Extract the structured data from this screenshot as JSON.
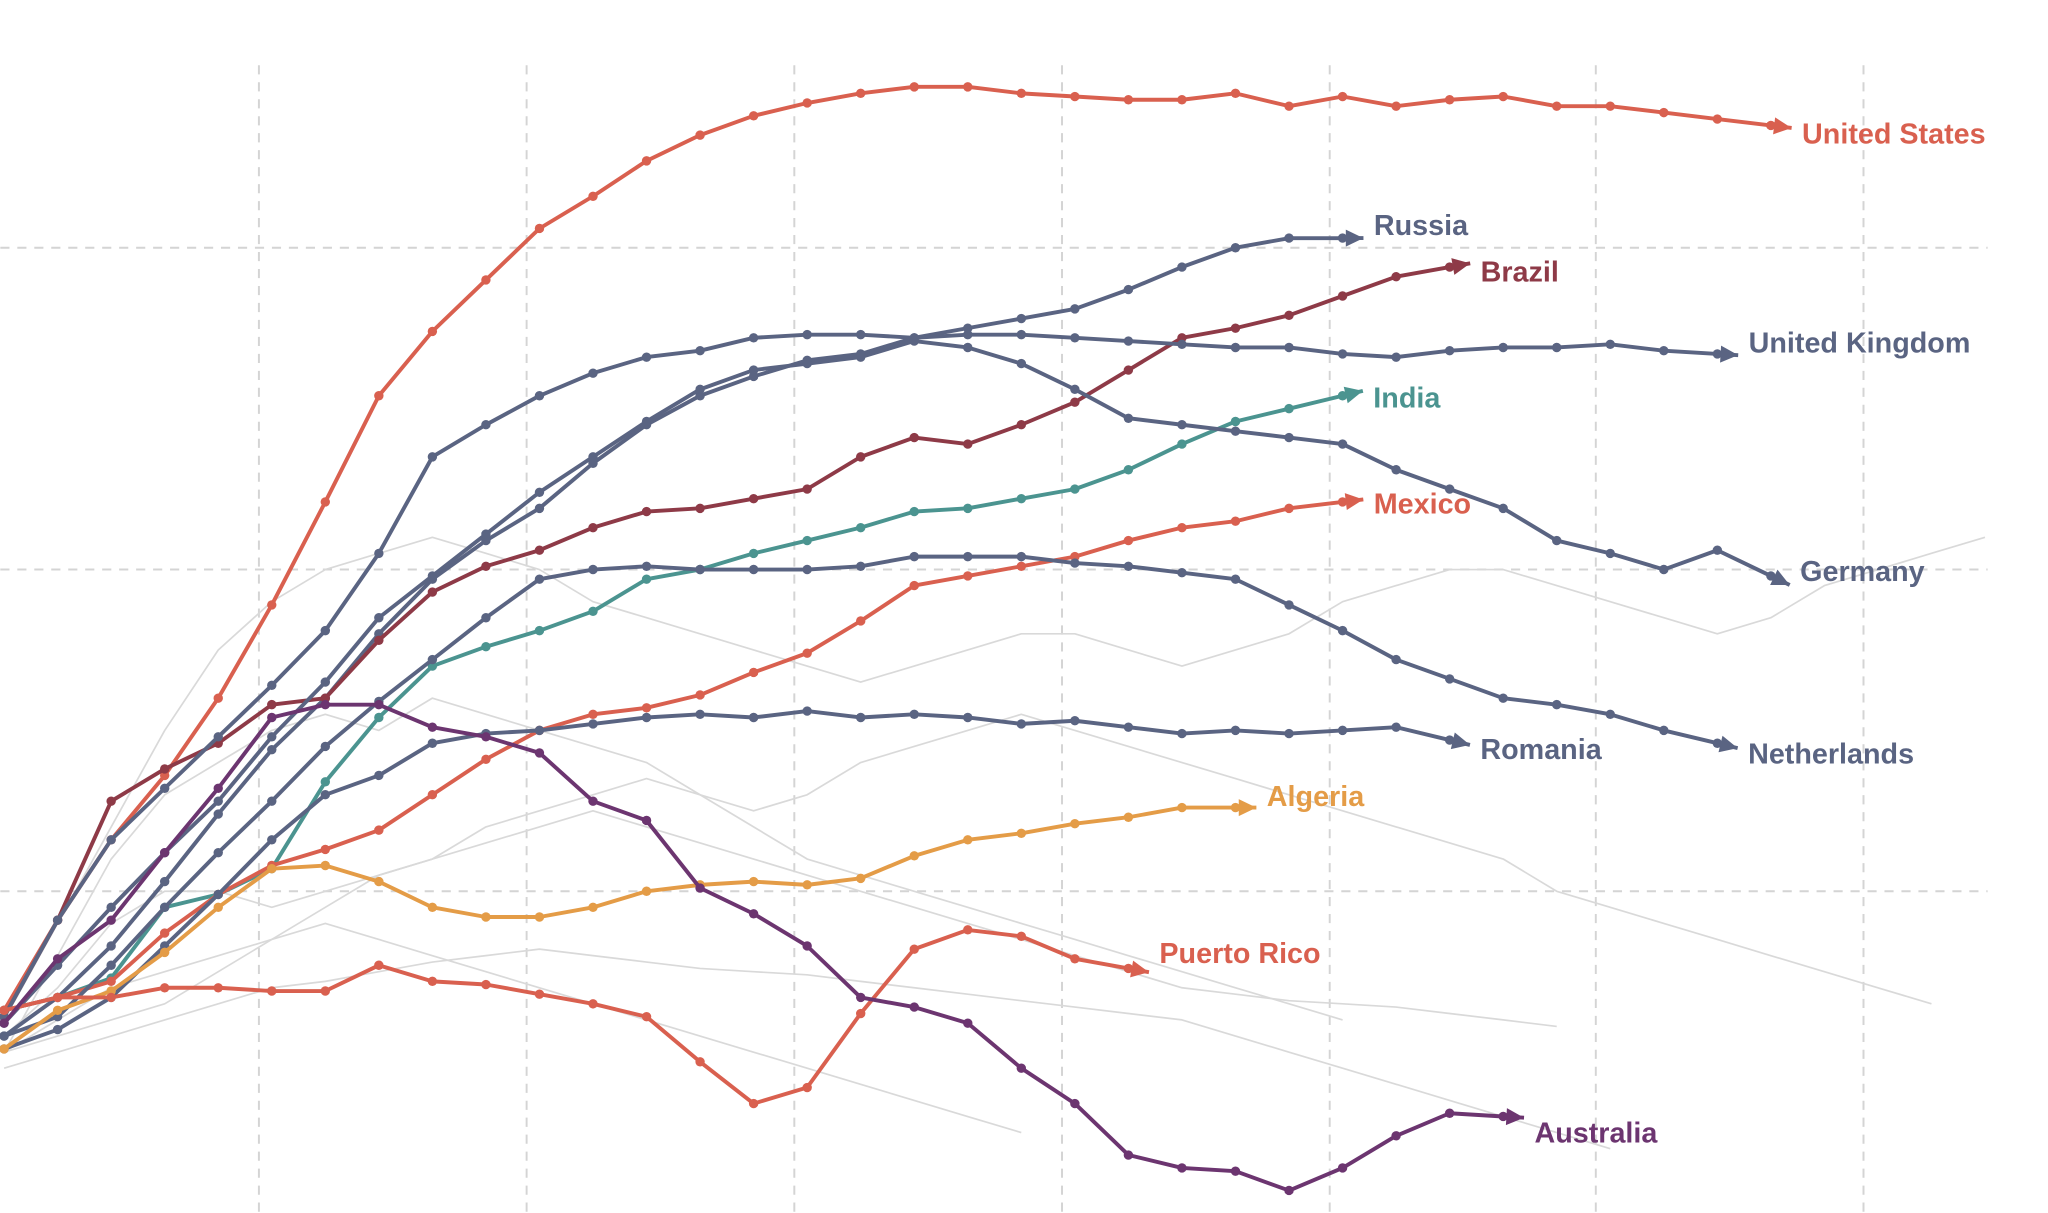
{
  "chart_data": {
    "type": "line",
    "xlim": [
      -0.07,
      38.17
    ],
    "xticks": [
      4.76,
      9.76,
      14.76,
      19.76,
      24.76,
      29.73,
      34.73
    ],
    "ylim": [
      0,
      3.77
    ],
    "yticks": [
      1,
      2,
      3
    ],
    "grid": true,
    "series": [
      {
        "color": "#d9d9d9",
        "values": [
          0.5,
          0.8,
          1.1,
          1.3,
          1.4,
          1.5,
          1.55,
          1.5,
          1.6,
          1.55,
          1.5,
          1.45,
          1.4,
          1.3,
          1.2,
          1.1,
          1.05,
          1.0,
          0.95,
          0.9,
          0.85,
          0.8,
          0.75,
          0.7,
          0.65,
          0.6
        ]
      },
      {
        "color": "#d9d9d9",
        "values": [
          0.55,
          0.7,
          0.9,
          1.0,
          1.0,
          0.95,
          1.0,
          1.05,
          1.1,
          1.2,
          1.25,
          1.3,
          1.35,
          1.3,
          1.25,
          1.3,
          1.4,
          1.45,
          1.5,
          1.55,
          1.5,
          1.45,
          1.4,
          1.35,
          1.3,
          1.25,
          1.2,
          1.15,
          1.1,
          1.0,
          0.95,
          0.9,
          0.85,
          0.8,
          0.75,
          0.7,
          0.65
        ]
      },
      {
        "color": "#d9d9d9",
        "values": [
          0.5,
          0.6,
          0.7,
          0.75,
          0.8,
          0.85,
          0.9,
          0.85,
          0.8,
          0.75,
          0.7,
          0.65,
          0.6,
          0.55,
          0.5,
          0.45,
          0.4,
          0.35,
          0.3,
          0.25
        ]
      },
      {
        "color": "#d9d9d9",
        "values": [
          0.6,
          0.9,
          1.2,
          1.5,
          1.75,
          1.9,
          2.0,
          2.05,
          2.1,
          2.05,
          2.0,
          1.9,
          1.85,
          1.8,
          1.75,
          1.7,
          1.65,
          1.7,
          1.75,
          1.8,
          1.8,
          1.75,
          1.7,
          1.75,
          1.8,
          1.9,
          1.95,
          2.0,
          2.0,
          1.95,
          1.9,
          1.85,
          1.8,
          1.85,
          1.95,
          2.0,
          2.05,
          2.1
        ]
      },
      {
        "color": "#d9d9d9",
        "values": [
          0.5,
          0.55,
          0.6,
          0.65,
          0.75,
          0.85,
          0.95,
          1.05,
          1.1,
          1.15,
          1.2,
          1.25,
          1.2,
          1.15,
          1.1,
          1.05,
          1.0,
          0.95,
          0.9,
          0.85,
          0.8,
          0.75,
          0.7,
          0.68,
          0.66,
          0.65,
          0.64,
          0.62,
          0.6,
          0.58
        ]
      },
      {
        "color": "#d9d9d9",
        "values": [
          0.45,
          0.5,
          0.55,
          0.6,
          0.65,
          0.7,
          0.72,
          0.75,
          0.78,
          0.8,
          0.82,
          0.8,
          0.78,
          0.76,
          0.75,
          0.74,
          0.72,
          0.7,
          0.68,
          0.66,
          0.64,
          0.62,
          0.6,
          0.55,
          0.5,
          0.45,
          0.4,
          0.35,
          0.3,
          0.25,
          0.2
        ]
      },
      {
        "name": "United States",
        "color": "#d9604f",
        "values": [
          0.63,
          0.91,
          1.16,
          1.36,
          1.6,
          1.89,
          2.21,
          2.54,
          2.74,
          2.9,
          3.06,
          3.16,
          3.27,
          3.35,
          3.41,
          3.45,
          3.48,
          3.5,
          3.5,
          3.48,
          3.47,
          3.46,
          3.46,
          3.48,
          3.44,
          3.47,
          3.44,
          3.46,
          3.47,
          3.44,
          3.44,
          3.42,
          3.4,
          3.38
        ]
      },
      {
        "name": "Russia",
        "color": "#5a6482",
        "values": [
          0.55,
          0.67,
          0.83,
          1.03,
          1.24,
          1.44,
          1.6,
          1.8,
          1.97,
          2.09,
          2.19,
          2.33,
          2.45,
          2.54,
          2.6,
          2.65,
          2.67,
          2.72,
          2.75,
          2.78,
          2.81,
          2.87,
          2.94,
          3.0,
          3.03,
          3.03
        ]
      },
      {
        "name": "Brazil",
        "color": "#8e3a47",
        "values": [
          0.61,
          0.91,
          1.28,
          1.38,
          1.46,
          1.58,
          1.6,
          1.78,
          1.93,
          2.01,
          2.06,
          2.13,
          2.18,
          2.19,
          2.22,
          2.25,
          2.35,
          2.41,
          2.39,
          2.45,
          2.52,
          2.62,
          2.72,
          2.75,
          2.79,
          2.85,
          2.91,
          2.94
        ]
      },
      {
        "name": "United Kingdom",
        "color": "#5a6482",
        "values": [
          0.61,
          0.91,
          1.16,
          1.32,
          1.48,
          1.64,
          1.81,
          2.05,
          2.35,
          2.45,
          2.54,
          2.61,
          2.66,
          2.68,
          2.72,
          2.73,
          2.73,
          2.72,
          2.73,
          2.73,
          2.72,
          2.71,
          2.7,
          2.69,
          2.69,
          2.67,
          2.66,
          2.68,
          2.69,
          2.69,
          2.7,
          2.68,
          2.67
        ]
      },
      {
        "name": "India",
        "color": "#4b9490",
        "values": [
          0.63,
          0.67,
          0.73,
          0.95,
          0.99,
          1.07,
          1.34,
          1.54,
          1.7,
          1.76,
          1.81,
          1.87,
          1.97,
          2.0,
          2.05,
          2.09,
          2.13,
          2.18,
          2.19,
          2.22,
          2.25,
          2.31,
          2.39,
          2.46,
          2.5,
          2.54
        ]
      },
      {
        "name": "Mexico",
        "color": "#d9604f",
        "values": [
          0.63,
          0.67,
          0.72,
          0.87,
          0.99,
          1.08,
          1.13,
          1.19,
          1.3,
          1.41,
          1.5,
          1.55,
          1.57,
          1.61,
          1.68,
          1.74,
          1.84,
          1.95,
          1.98,
          2.01,
          2.04,
          2.09,
          2.13,
          2.15,
          2.19,
          2.21
        ]
      },
      {
        "name": "Germany",
        "color": "#5a6482",
        "values": [
          0.59,
          0.77,
          0.95,
          1.12,
          1.28,
          1.48,
          1.65,
          1.85,
          1.98,
          2.11,
          2.24,
          2.35,
          2.46,
          2.56,
          2.62,
          2.64,
          2.66,
          2.71,
          2.69,
          2.64,
          2.56,
          2.47,
          2.45,
          2.43,
          2.41,
          2.39,
          2.31,
          2.25,
          2.19,
          2.09,
          2.05,
          2.0,
          2.06,
          1.98
        ]
      },
      {
        "name": "Romania",
        "color": "#5a6482",
        "values": [
          0.51,
          0.57,
          0.67,
          0.83,
          0.99,
          1.16,
          1.3,
          1.36,
          1.46,
          1.49,
          1.5,
          1.52,
          1.54,
          1.55,
          1.54,
          1.56,
          1.54,
          1.55,
          1.54,
          1.52,
          1.53,
          1.51,
          1.49,
          1.5,
          1.49,
          1.5,
          1.51,
          1.47
        ]
      },
      {
        "name": "Netherlands",
        "color": "#5a6482",
        "values": [
          0.55,
          0.61,
          0.77,
          0.95,
          1.12,
          1.28,
          1.45,
          1.59,
          1.72,
          1.85,
          1.97,
          2.0,
          2.01,
          2.0,
          2.0,
          2.0,
          2.01,
          2.04,
          2.04,
          2.04,
          2.02,
          2.01,
          1.99,
          1.97,
          1.89,
          1.81,
          1.72,
          1.66,
          1.6,
          1.58,
          1.55,
          1.5,
          1.46
        ]
      },
      {
        "name": "Algeria",
        "color": "#e49c47",
        "values": [
          0.51,
          0.63,
          0.69,
          0.81,
          0.95,
          1.07,
          1.08,
          1.03,
          0.95,
          0.92,
          0.92,
          0.95,
          1.0,
          1.02,
          1.03,
          1.02,
          1.04,
          1.11,
          1.16,
          1.18,
          1.21,
          1.23,
          1.26,
          1.26
        ]
      },
      {
        "name": "Puerto Rico",
        "color": "#d9604f",
        "values": [
          0.63,
          0.67,
          0.67,
          0.7,
          0.7,
          0.69,
          0.69,
          0.77,
          0.72,
          0.71,
          0.68,
          0.65,
          0.61,
          0.47,
          0.34,
          0.39,
          0.62,
          0.82,
          0.88,
          0.86,
          0.79,
          0.76
        ]
      },
      {
        "name": "Australia",
        "color": "#6c3570",
        "values": [
          0.59,
          0.79,
          0.91,
          1.12,
          1.32,
          1.54,
          1.58,
          1.58,
          1.51,
          1.48,
          1.43,
          1.28,
          1.22,
          1.01,
          0.93,
          0.83,
          0.67,
          0.64,
          0.59,
          0.45,
          0.34,
          0.18,
          0.14,
          0.13,
          0.07,
          0.14,
          0.24,
          0.31,
          0.3
        ]
      }
    ]
  }
}
